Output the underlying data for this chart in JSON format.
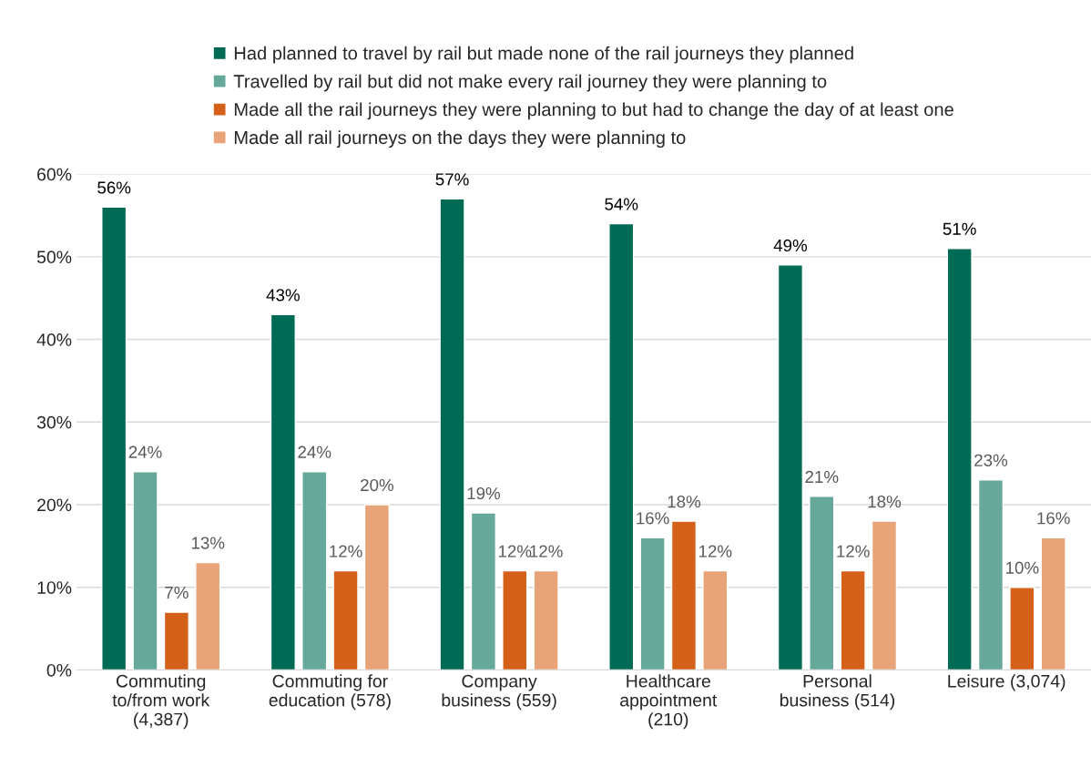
{
  "chart_data": {
    "type": "bar",
    "categories": [
      "Commuting\nto/from work\n(4,387)",
      "Commuting for\neducation (578)",
      "Company\nbusiness (559)",
      "Healthcare\nappointment\n(210)",
      "Personal\nbusiness (514)",
      "Leisure (3,074)"
    ],
    "series": [
      {
        "name": "Had planned to travel by rail but made none of the rail journeys they planned",
        "color": "#006b54",
        "values": [
          56,
          43,
          57,
          54,
          49,
          51
        ],
        "value_labels": [
          "56%",
          "43%",
          "57%",
          "54%",
          "49%",
          "51%"
        ]
      },
      {
        "name": "Travelled by rail but did not make every rail journey they were planning to",
        "color": "#66a89a",
        "values": [
          24,
          24,
          19,
          16,
          21,
          23
        ],
        "value_labels": [
          "24%",
          "24%",
          "19%",
          "16%",
          "21%",
          "23%"
        ]
      },
      {
        "name": "Made all the rail journeys they were planning to but had to change the day of at least one",
        "color": "#d4601a",
        "values": [
          7,
          12,
          12,
          18,
          12,
          10
        ],
        "value_labels": [
          "7%",
          "12%",
          "12%",
          "18%",
          "12%",
          "10%"
        ]
      },
      {
        "name": "Made all rail journeys on the days they were planning to",
        "color": "#e8a478",
        "values": [
          13,
          20,
          12,
          12,
          18,
          16
        ],
        "value_labels": [
          "13%",
          "20%",
          "12%",
          "12%",
          "18%",
          "16%"
        ]
      }
    ],
    "ylim": [
      0,
      60
    ],
    "yticks": [
      {
        "value": 0,
        "label": "0%"
      },
      {
        "value": 10,
        "label": "10%"
      },
      {
        "value": 20,
        "label": "20%"
      },
      {
        "value": 30,
        "label": "30%"
      },
      {
        "value": 40,
        "label": "40%"
      },
      {
        "value": 50,
        "label": "50%"
      },
      {
        "value": 60,
        "label": "60%"
      }
    ],
    "grid": "y",
    "legend": "top"
  }
}
